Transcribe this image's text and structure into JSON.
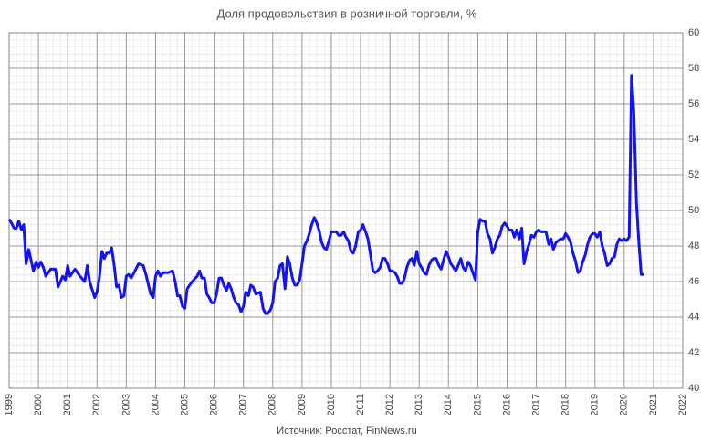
{
  "chart_data": {
    "type": "line",
    "title": "Доля продовольствия в розничной торговли, %",
    "source": "Источник: Росстат, FinNews.ru",
    "color": "#1414f0",
    "grid": true,
    "xlim": [
      1999,
      2022
    ],
    "xticks": [
      1999,
      2000,
      2001,
      2002,
      2003,
      2004,
      2005,
      2006,
      2007,
      2008,
      2009,
      2010,
      2011,
      2012,
      2013,
      2014,
      2015,
      2016,
      2017,
      2018,
      2019,
      2020,
      2021,
      2022
    ],
    "ylim": [
      40,
      60
    ],
    "yticks": [
      40,
      42,
      44,
      46,
      48,
      50,
      52,
      54,
      56,
      58,
      60
    ],
    "x": [
      1999.0,
      1999.08,
      1999.17,
      1999.25,
      1999.33,
      1999.42,
      1999.5,
      1999.58,
      1999.67,
      1999.75,
      1999.83,
      1999.92,
      2000.0,
      2000.08,
      2000.17,
      2000.25,
      2000.42,
      2000.58,
      2000.67,
      2000.83,
      2000.92,
      2001.0,
      2001.08,
      2001.25,
      2001.42,
      2001.58,
      2001.67,
      2001.75,
      2001.92,
      2002.0,
      2002.08,
      2002.17,
      2002.25,
      2002.33,
      2002.42,
      2002.5,
      2002.58,
      2002.67,
      2002.75,
      2002.83,
      2002.92,
      2003.0,
      2003.08,
      2003.17,
      2003.33,
      2003.42,
      2003.58,
      2003.67,
      2003.83,
      2003.92,
      2004.0,
      2004.08,
      2004.17,
      2004.25,
      2004.42,
      2004.58,
      2004.67,
      2004.75,
      2004.83,
      2004.92,
      2005.0,
      2005.08,
      2005.25,
      2005.42,
      2005.5,
      2005.58,
      2005.67,
      2005.75,
      2005.83,
      2005.92,
      2006.0,
      2006.08,
      2006.17,
      2006.25,
      2006.33,
      2006.42,
      2006.5,
      2006.58,
      2006.67,
      2006.75,
      2006.83,
      2006.92,
      2007.0,
      2007.08,
      2007.17,
      2007.25,
      2007.33,
      2007.42,
      2007.58,
      2007.67,
      2007.75,
      2007.83,
      2007.92,
      2008.0,
      2008.08,
      2008.17,
      2008.25,
      2008.33,
      2008.42,
      2008.5,
      2008.58,
      2008.67,
      2008.75,
      2008.83,
      2008.92,
      2009.0,
      2009.08,
      2009.17,
      2009.25,
      2009.33,
      2009.42,
      2009.5,
      2009.58,
      2009.67,
      2009.75,
      2009.83,
      2009.92,
      2010.0,
      2010.08,
      2010.17,
      2010.25,
      2010.33,
      2010.42,
      2010.5,
      2010.58,
      2010.67,
      2010.75,
      2010.83,
      2010.92,
      2011.0,
      2011.08,
      2011.17,
      2011.25,
      2011.33,
      2011.42,
      2011.5,
      2011.58,
      2011.67,
      2011.75,
      2011.83,
      2011.92,
      2012.0,
      2012.08,
      2012.17,
      2012.25,
      2012.33,
      2012.42,
      2012.5,
      2012.58,
      2012.67,
      2012.75,
      2012.83,
      2012.92,
      2013.0,
      2013.08,
      2013.17,
      2013.25,
      2013.33,
      2013.42,
      2013.5,
      2013.58,
      2013.67,
      2013.75,
      2013.83,
      2013.92,
      2014.0,
      2014.08,
      2014.17,
      2014.25,
      2014.33,
      2014.42,
      2014.5,
      2014.58,
      2014.67,
      2014.75,
      2014.83,
      2014.92,
      2015.0,
      2015.08,
      2015.17,
      2015.25,
      2015.33,
      2015.42,
      2015.5,
      2015.58,
      2015.67,
      2015.75,
      2015.83,
      2015.92,
      2016.0,
      2016.08,
      2016.17,
      2016.25,
      2016.33,
      2016.42,
      2016.5,
      2016.58,
      2016.67,
      2016.75,
      2016.83,
      2016.92,
      2017.0,
      2017.08,
      2017.17,
      2017.25,
      2017.33,
      2017.42,
      2017.5,
      2017.58,
      2017.67,
      2017.75,
      2017.83,
      2017.92,
      2018.0,
      2018.08,
      2018.17,
      2018.25,
      2018.33,
      2018.42,
      2018.5,
      2018.58,
      2018.67,
      2018.75,
      2018.83,
      2018.92,
      2019.0,
      2019.08,
      2019.17,
      2019.25,
      2019.33,
      2019.42,
      2019.5,
      2019.58,
      2019.67,
      2019.75,
      2019.83,
      2019.92,
      2020.0,
      2020.08,
      2020.17,
      2020.25,
      2020.33,
      2020.42,
      2020.5,
      2020.58,
      2020.67
    ],
    "values": [
      49.5,
      49.3,
      49.0,
      49.0,
      49.4,
      48.9,
      49.2,
      47.0,
      47.8,
      47.2,
      46.6,
      47.1,
      46.8,
      47.1,
      46.8,
      46.3,
      46.7,
      46.7,
      45.7,
      46.3,
      46.1,
      46.9,
      46.3,
      46.7,
      46.3,
      46.0,
      46.9,
      46.0,
      45.1,
      45.4,
      46.2,
      47.7,
      47.3,
      47.6,
      47.6,
      47.9,
      47.0,
      45.7,
      45.8,
      45.1,
      45.2,
      46.3,
      46.4,
      46.2,
      46.7,
      47.0,
      46.9,
      46.4,
      45.3,
      45.1,
      46.3,
      46.6,
      46.3,
      46.5,
      46.5,
      46.6,
      46.0,
      45.2,
      45.2,
      44.6,
      44.5,
      45.6,
      46.0,
      46.3,
      46.6,
      46.2,
      46.2,
      45.3,
      45.1,
      44.8,
      44.8,
      45.3,
      46.2,
      46.2,
      45.8,
      45.5,
      45.9,
      45.6,
      45.1,
      44.8,
      44.7,
      44.3,
      44.6,
      45.4,
      45.2,
      45.8,
      45.7,
      45.3,
      45.4,
      44.5,
      44.2,
      44.2,
      44.4,
      44.8,
      46.0,
      46.2,
      46.9,
      47.0,
      45.6,
      47.4,
      47.0,
      46.2,
      45.8,
      45.8,
      46.1,
      47.0,
      48.0,
      48.3,
      48.7,
      49.2,
      49.6,
      49.3,
      48.9,
      48.2,
      47.9,
      47.8,
      48.3,
      48.8,
      48.8,
      48.8,
      48.6,
      48.6,
      48.8,
      48.5,
      48.3,
      47.7,
      47.6,
      48.0,
      48.8,
      48.9,
      49.2,
      48.8,
      48.4,
      47.6,
      46.6,
      46.5,
      46.6,
      46.8,
      47.3,
      47.3,
      47.0,
      46.6,
      46.6,
      46.5,
      46.3,
      45.9,
      45.9,
      46.2,
      46.8,
      47.2,
      47.3,
      46.9,
      47.7,
      47.0,
      46.8,
      46.5,
      46.4,
      46.9,
      47.2,
      47.3,
      47.3,
      46.9,
      46.7,
      47.2,
      47.7,
      47.4,
      47.0,
      46.8,
      46.6,
      46.9,
      47.3,
      46.8,
      46.6,
      47.1,
      46.9,
      46.5,
      46.1,
      48.8,
      49.5,
      49.4,
      49.4,
      48.7,
      48.4,
      47.6,
      47.9,
      48.4,
      48.6,
      49.1,
      49.3,
      49.1,
      48.9,
      48.9,
      48.5,
      48.9,
      48.4,
      49.0,
      47.0,
      47.7,
      48.1,
      48.6,
      48.5,
      48.8,
      48.9,
      48.8,
      48.8,
      48.8,
      48.1,
      48.4,
      47.8,
      48.2,
      48.3,
      48.4,
      48.4,
      48.7,
      48.5,
      48.2,
      47.6,
      47.2,
      46.5,
      46.6,
      47.1,
      47.5,
      48.1,
      48.5,
      48.7,
      48.7,
      48.5,
      48.8,
      48.0,
      47.6,
      46.9,
      47.0,
      47.3,
      47.4,
      48.1,
      48.4,
      48.3,
      48.4,
      48.3,
      48.5,
      57.6,
      55.5,
      50.4,
      48.2,
      46.4,
      46.4
    ]
  }
}
